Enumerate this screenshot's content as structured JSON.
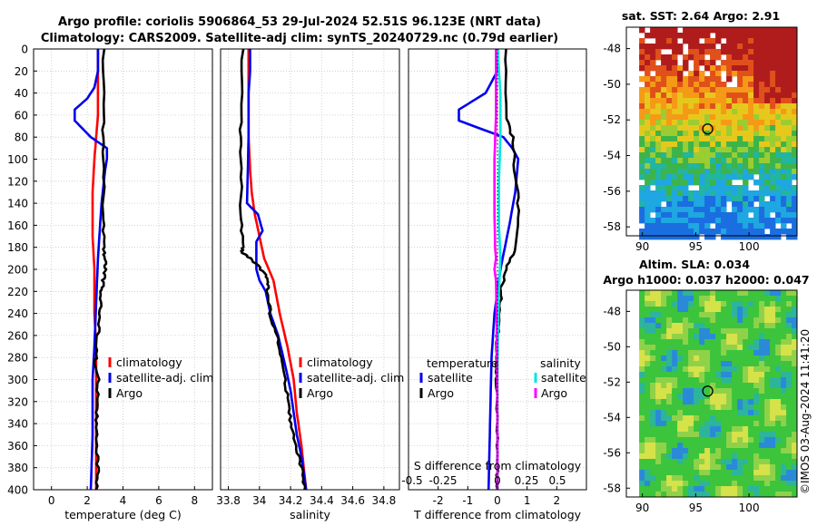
{
  "title": {
    "line1": "Argo profile: coriolis 5906864_53 29-Jul-2024 52.51S 96.123E (NRT data)",
    "line2": "Climatology: CARS2009. Satellite-adj clim: synTS_20240729.nc (0.79d earlier)"
  },
  "side_label": "©IMOS 03-Aug-2024 11:41:20",
  "colors": {
    "climatology": "#ff0000",
    "satellite": "#0000ee",
    "argo": "#000000",
    "sat_salinity": "#00e5e5",
    "argo_salinity": "#ff00ff"
  },
  "chart_data": [
    {
      "type": "line",
      "id": "temperature",
      "xlabel": "temperature (deg C)",
      "xlim": [
        -1,
        9
      ],
      "xticks": [
        "0",
        "2",
        "4",
        "6",
        "8"
      ],
      "ylim": [
        0,
        400
      ],
      "yticks": [
        "0",
        "20",
        "40",
        "60",
        "80",
        "100",
        "120",
        "140",
        "160",
        "180",
        "200",
        "220",
        "240",
        "260",
        "280",
        "300",
        "320",
        "340",
        "360",
        "380",
        "400"
      ],
      "legend": [
        "climatology",
        "satellite-adj. clim",
        "Argo"
      ],
      "series": [
        {
          "name": "climatology",
          "color": "#ff0000",
          "x": [
            2.6,
            2.6,
            2.6,
            2.5,
            2.4,
            2.3,
            2.3,
            2.3,
            2.4,
            2.4,
            2.5,
            2.5,
            2.5,
            2.5
          ],
          "y": [
            0,
            40,
            60,
            80,
            100,
            130,
            150,
            170,
            200,
            240,
            270,
            300,
            360,
            400
          ]
        },
        {
          "name": "satellite-adj. clim",
          "color": "#0000ee",
          "x": [
            2.6,
            2.6,
            2.4,
            2.0,
            1.3,
            1.3,
            2.2,
            3.1,
            3.1,
            3.0,
            2.8,
            2.6,
            2.5,
            2.4,
            2.3,
            2.3,
            2.2
          ],
          "y": [
            0,
            20,
            35,
            45,
            55,
            65,
            80,
            90,
            100,
            110,
            140,
            190,
            230,
            270,
            300,
            350,
            400
          ]
        },
        {
          "name": "Argo",
          "color": "#000000",
          "x": [
            2.9,
            2.9,
            2.9,
            2.9,
            2.9,
            3.0,
            3.0,
            2.9,
            2.8,
            2.7,
            2.6,
            2.5,
            2.4,
            2.6,
            2.6,
            2.5,
            2.5,
            2.6,
            2.5
          ],
          "y": [
            0,
            60,
            100,
            150,
            180,
            190,
            200,
            210,
            220,
            240,
            260,
            280,
            285,
            300,
            320,
            340,
            360,
            380,
            400
          ]
        }
      ]
    },
    {
      "type": "line",
      "id": "salinity",
      "xlabel": "salinity",
      "xlim": [
        33.75,
        34.9
      ],
      "xticks": [
        "33.8",
        "34",
        "34.2",
        "34.4",
        "34.6",
        "34.8"
      ],
      "ylim": [
        0,
        400
      ],
      "legend": [
        "climatology",
        "satellite-adj. clim",
        "Argo"
      ],
      "series": [
        {
          "name": "climatology",
          "color": "#ff0000",
          "x": [
            33.93,
            33.93,
            33.93,
            33.94,
            33.95,
            33.97,
            34.0,
            34.03,
            34.09,
            34.13,
            34.18,
            34.22,
            34.24,
            34.27,
            34.3
          ],
          "y": [
            0,
            40,
            80,
            110,
            130,
            150,
            170,
            190,
            210,
            240,
            270,
            300,
            330,
            360,
            400
          ]
        },
        {
          "name": "satellite-adj. clim",
          "color": "#0000ee",
          "x": [
            33.94,
            33.94,
            33.93,
            33.93,
            33.92,
            33.99,
            34.02,
            33.98,
            33.98,
            33.98,
            34.0,
            34.04,
            34.07,
            34.12,
            34.17,
            34.2,
            34.22,
            34.24,
            34.27,
            34.3
          ],
          "y": [
            0,
            20,
            40,
            80,
            140,
            150,
            165,
            175,
            190,
            200,
            210,
            220,
            240,
            260,
            290,
            310,
            330,
            350,
            370,
            400
          ]
        },
        {
          "name": "Argo",
          "color": "#000000",
          "x": [
            33.89,
            33.88,
            33.88,
            33.88,
            33.89,
            33.89,
            33.94,
            34.01,
            34.06,
            34.05,
            34.07,
            34.11,
            34.14,
            34.16,
            34.19,
            34.2,
            34.23,
            34.27,
            34.29
          ],
          "y": [
            0,
            60,
            100,
            150,
            180,
            185,
            190,
            200,
            210,
            220,
            240,
            260,
            280,
            300,
            320,
            340,
            360,
            380,
            400
          ]
        }
      ]
    },
    {
      "type": "line",
      "id": "difference",
      "xlabel": "T difference from climatology",
      "xlim": [
        -3,
        3
      ],
      "xticks": [
        "-2",
        "-1",
        "0",
        "1",
        "2"
      ],
      "ylim": [
        0,
        400
      ],
      "top_axis": {
        "label": "S difference from climatology",
        "ticks": [
          "-0.5",
          "-0.25",
          "0",
          "0.25",
          "0.5"
        ]
      },
      "legend_temperature": {
        "title": "temperature",
        "items": [
          "satellite",
          "Argo"
        ]
      },
      "legend_salinity": {
        "title": "salinity",
        "items": [
          "satellite",
          "Argo"
        ]
      },
      "series": [
        {
          "name": "temperature satellite",
          "color": "#0000ee",
          "x": [
            0.0,
            0.0,
            -0.4,
            -1.3,
            -1.3,
            0.2,
            0.5,
            0.7,
            0.6,
            0.4,
            0.1,
            -0.1,
            -0.2,
            -0.25,
            -0.3
          ],
          "y": [
            0,
            20,
            40,
            55,
            65,
            80,
            90,
            100,
            130,
            160,
            200,
            240,
            280,
            340,
            400
          ]
        },
        {
          "name": "temperature Argo",
          "color": "#000000",
          "x": [
            0.3,
            0.3,
            0.5,
            0.6,
            0.7,
            0.6,
            0.3,
            0.1,
            0.1,
            0.0,
            0.0,
            -0.05,
            0.0,
            0.0,
            0.0
          ],
          "y": [
            0,
            60,
            80,
            110,
            140,
            180,
            200,
            220,
            240,
            260,
            280,
            300,
            340,
            380,
            400
          ]
        },
        {
          "name": "salinity satellite",
          "color": "#00e5e5",
          "x": [
            0.02,
            0.05,
            0.1,
            0.1,
            0.05,
            0.05,
            0.1,
            0.05,
            0.02,
            0.0,
            0.0
          ],
          "y": [
            0,
            20,
            40,
            80,
            120,
            160,
            190,
            220,
            260,
            300,
            400
          ]
        },
        {
          "name": "salinity Argo",
          "color": "#ff00ff",
          "x": [
            -0.05,
            -0.05,
            -0.1,
            -0.1,
            -0.08,
            -0.05,
            -0.1,
            -0.05,
            -0.03,
            -0.02,
            -0.01,
            0.0,
            0.0
          ],
          "y": [
            0,
            60,
            100,
            150,
            180,
            190,
            200,
            210,
            240,
            270,
            300,
            350,
            400
          ]
        }
      ]
    },
    {
      "type": "heatmap",
      "id": "sst_map",
      "title": "sat. SST: 2.64 Argo: 2.91",
      "xticks": [
        "90",
        "95",
        "100"
      ],
      "yticks": [
        "-48",
        "-50",
        "-52",
        "-54",
        "-56",
        "-58"
      ],
      "xlim": [
        88.5,
        104.5
      ],
      "ylim": [
        -58.5,
        -46.8
      ],
      "argo_position": {
        "lon": 96.123,
        "lat": -52.51
      }
    },
    {
      "type": "heatmap",
      "id": "sla_map",
      "title_line1": "Altim. SLA: 0.034",
      "title_line2": "Argo h1000: 0.037 h2000: 0.047",
      "xticks": [
        "90",
        "95",
        "100"
      ],
      "yticks": [
        "-48",
        "-50",
        "-52",
        "-54",
        "-56",
        "-58"
      ],
      "xlim": [
        88.5,
        104.5
      ],
      "ylim": [
        -58.5,
        -46.8
      ],
      "argo_position": {
        "lon": 96.123,
        "lat": -52.51
      }
    }
  ]
}
